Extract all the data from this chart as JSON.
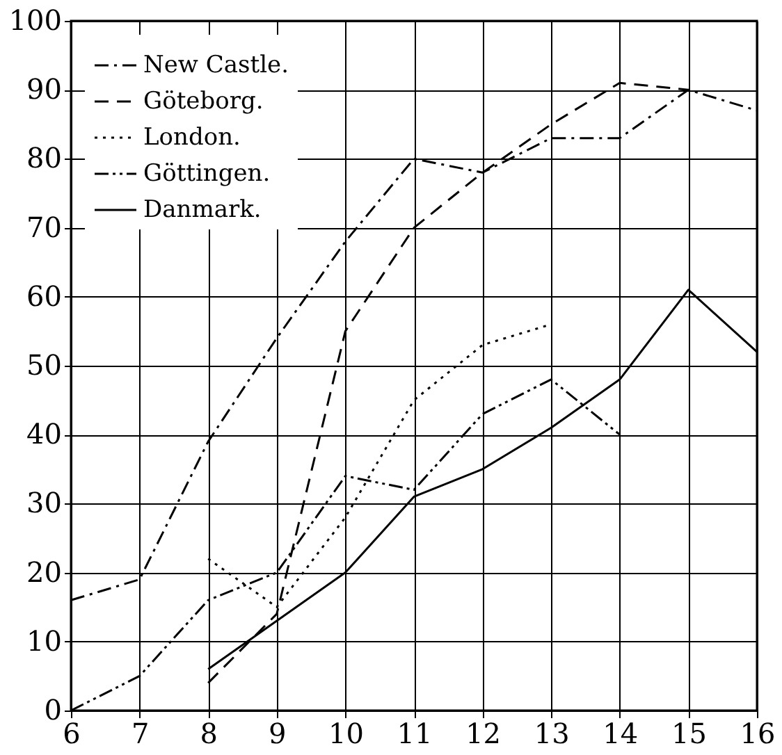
{
  "chart_data": {
    "type": "line",
    "x": [
      6,
      7,
      8,
      9,
      10,
      11,
      12,
      13,
      14,
      15,
      16
    ],
    "series": [
      {
        "name": "New Castle.",
        "color": "#000000",
        "line_style": "dashed",
        "values": [
          16,
          19,
          39,
          54,
          68,
          80,
          78,
          83,
          83,
          90,
          87
        ]
      },
      {
        "name": "Göteborg.",
        "color": "#000000",
        "line_style": "dashed",
        "values": [
          null,
          null,
          4,
          14,
          55,
          70,
          78,
          85,
          91,
          90,
          null
        ]
      },
      {
        "name": "London.",
        "color": "#000000",
        "line_style": "dotted",
        "values": [
          null,
          null,
          22,
          15,
          28,
          45,
          53,
          56,
          null,
          null,
          null
        ]
      },
      {
        "name": "Göttingen.",
        "color": "#000000",
        "line_style": "dashed",
        "values": [
          0,
          5,
          16,
          20,
          34,
          32,
          43,
          48,
          40,
          null,
          null
        ]
      },
      {
        "name": "Danmark.",
        "color": "#000000",
        "line_style": "solid",
        "values": [
          null,
          null,
          6,
          13,
          20,
          31,
          35,
          41,
          48,
          61,
          52
        ]
      }
    ],
    "xlim": [
      6,
      16
    ],
    "xticks": [
      6,
      7,
      8,
      9,
      10,
      11,
      12,
      13,
      14,
      15,
      16
    ],
    "ylim": [
      0,
      100
    ],
    "yticks": [
      0,
      10,
      20,
      30,
      40,
      50,
      60,
      70,
      80,
      90,
      100
    ],
    "grid": true,
    "legend": "top left",
    "marker": "none"
  }
}
